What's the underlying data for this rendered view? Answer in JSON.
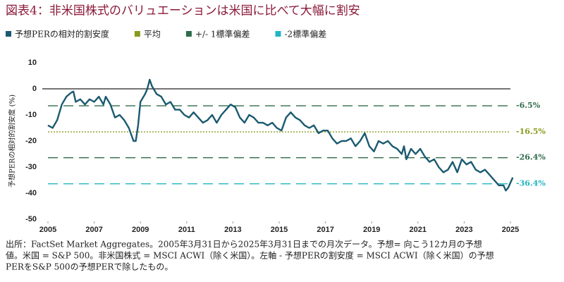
{
  "chart_data": {
    "type": "line",
    "title": "図表4：非米国株式のバリュエーションは米国に比べて大幅に割安",
    "ylabel": "予想PERの相対的割安度 (%)",
    "xlim": [
      2005,
      2025
    ],
    "xticks": [
      2005,
      2007,
      2009,
      2011,
      2013,
      2015,
      2017,
      2019,
      2021,
      2023,
      2025
    ],
    "ylim": [
      -50,
      10
    ],
    "yticks": [
      -50,
      -40,
      -30,
      -20,
      -10,
      0,
      10
    ],
    "series": [
      {
        "name": "予想PERの相対的割安度",
        "color": "#1a5a70",
        "x": [
          2005.0,
          2005.2,
          2005.4,
          2005.6,
          2005.8,
          2006.0,
          2006.1,
          2006.2,
          2006.4,
          2006.6,
          2006.8,
          2007.0,
          2007.2,
          2007.4,
          2007.5,
          2007.7,
          2007.9,
          2008.1,
          2008.3,
          2008.5,
          2008.7,
          2008.8,
          2008.9,
          2009.0,
          2009.2,
          2009.3,
          2009.4,
          2009.5,
          2009.7,
          2009.9,
          2010.1,
          2010.3,
          2010.5,
          2010.7,
          2010.9,
          2011.1,
          2011.3,
          2011.5,
          2011.7,
          2011.9,
          2012.1,
          2012.3,
          2012.5,
          2012.7,
          2012.9,
          2013.1,
          2013.3,
          2013.5,
          2013.7,
          2013.9,
          2014.1,
          2014.3,
          2014.5,
          2014.7,
          2014.9,
          2015.1,
          2015.3,
          2015.5,
          2015.7,
          2015.9,
          2016.1,
          2016.3,
          2016.5,
          2016.7,
          2016.9,
          2017.1,
          2017.3,
          2017.5,
          2017.7,
          2017.9,
          2018.1,
          2018.3,
          2018.5,
          2018.7,
          2018.9,
          2019.1,
          2019.3,
          2019.5,
          2019.7,
          2019.9,
          2020.1,
          2020.3,
          2020.4,
          2020.5,
          2020.7,
          2020.9,
          2021.1,
          2021.3,
          2021.5,
          2021.7,
          2021.9,
          2022.1,
          2022.3,
          2022.5,
          2022.7,
          2022.9,
          2023.1,
          2023.3,
          2023.5,
          2023.7,
          2023.9,
          2024.1,
          2024.3,
          2024.5,
          2024.7,
          2024.8,
          2024.9,
          2025.0,
          2025.1
        ],
        "values": [
          -14,
          -15,
          -12,
          -6,
          -3,
          -1.5,
          -1,
          -5,
          -4,
          -6,
          -4,
          -5,
          -3,
          -6,
          -3,
          -6,
          -11,
          -10,
          -12,
          -15,
          -20,
          -20,
          -14,
          -5,
          -2,
          0,
          3.5,
          1,
          -2,
          -3,
          -6,
          -5,
          -8,
          -8,
          -10,
          -11,
          -9,
          -11,
          -13,
          -12,
          -10,
          -13,
          -10,
          -8,
          -6,
          -7,
          -11,
          -13,
          -10,
          -11,
          -13,
          -13,
          -14,
          -13,
          -15,
          -16,
          -11,
          -9,
          -11,
          -12,
          -14,
          -15,
          -14,
          -17,
          -16,
          -16,
          -19,
          -21,
          -20,
          -20,
          -19,
          -22,
          -20,
          -17,
          -22,
          -24,
          -20,
          -21,
          -20,
          -22,
          -23,
          -25,
          -22,
          -27,
          -23,
          -25,
          -23,
          -26,
          -28,
          -27,
          -30,
          -32,
          -31,
          -28,
          -32,
          -27,
          -29,
          -28,
          -31,
          -32,
          -31,
          -33,
          -35,
          -37,
          -37,
          -39,
          -38,
          -36,
          -34
        ]
      }
    ],
    "reference_lines": [
      {
        "name": "平均",
        "color": "#8a9a1e",
        "dash": "dotted",
        "values": [
          -16.5
        ],
        "value_labels": [
          "-16.5%"
        ]
      },
      {
        "name": "+/- 1標準偏差",
        "color": "#2e6b4a",
        "dash": "dashed",
        "values": [
          -6.5,
          -26.4
        ],
        "value_labels": [
          "-6.5%",
          "-26.4%"
        ]
      },
      {
        "name": "-2標準偏差",
        "color": "#22b5c4",
        "dash": "dashed",
        "values": [
          -36.4
        ],
        "value_labels": [
          "-36.4%"
        ]
      }
    ],
    "notes": [
      "出所：FactSet Market Aggregates。2005年3月31日から2025年3月31日までの月次データ。予想= 向こう12カ月の予想",
      "値。米国 = S&P 500。非米国株式 = MSCI ACWI（除く米国）。左軸 - 予想PERの割安度 = MSCI ACWI（除く米国）の予想",
      "PERをS&P 500の予想PERで除したもの。"
    ]
  }
}
